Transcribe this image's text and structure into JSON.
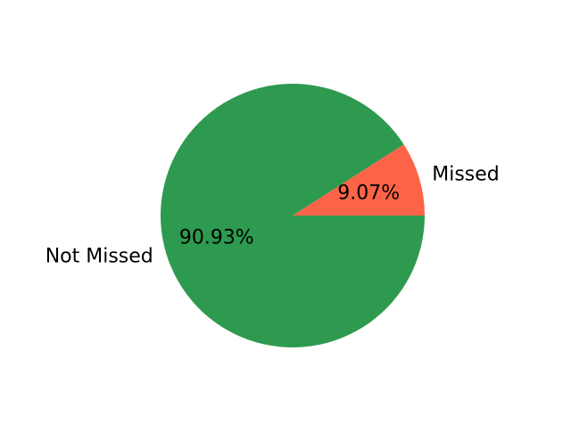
{
  "chart_data": {
    "type": "pie",
    "slices": [
      {
        "label": "Missed",
        "value": 9.07,
        "display": "9.07%",
        "color": "#fd6447"
      },
      {
        "label": "Not Missed",
        "value": 90.93,
        "display": "90.93%",
        "color": "#2e9a4f"
      }
    ],
    "start_angle_deg": 0,
    "direction": "counterclockwise"
  }
}
